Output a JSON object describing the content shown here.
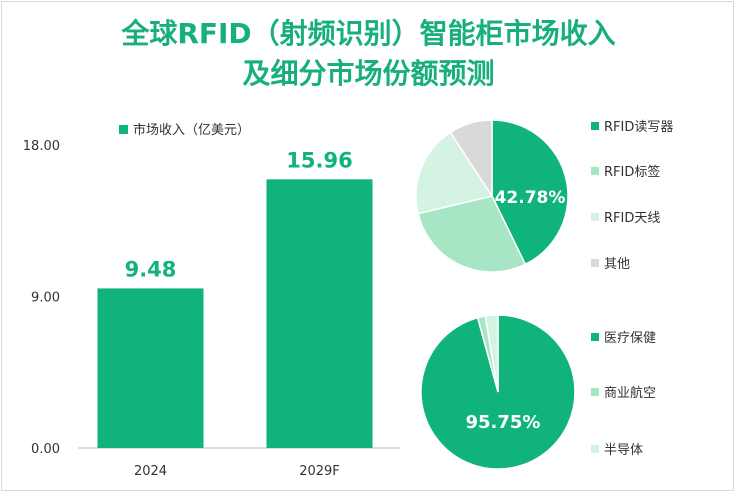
{
  "title_lines": [
    "全球RFID（射频识别）智能柜市场收入",
    "及细分市场份额预测"
  ],
  "colors": {
    "accent": "#10b37a",
    "light1": "#a6e6c4",
    "light2": "#d4f3e2",
    "gray": "#d9d9d9",
    "axis": "#595959"
  },
  "chart_data": [
    {
      "type": "bar",
      "title": "",
      "legend": "市场收入（亿美元）",
      "categories": [
        "2024",
        "2029F"
      ],
      "values": [
        9.48,
        15.96
      ],
      "data_labels": [
        "9.48",
        "15.96"
      ],
      "ylim": [
        0,
        18
      ],
      "yticks": [
        "0.00",
        "9.00",
        "18.00"
      ],
      "xlabel": "",
      "ylabel": ""
    },
    {
      "type": "pie",
      "title": "",
      "slices": [
        {
          "name": "RFID读写器",
          "value": 42.78
        },
        {
          "name": "RFID标签",
          "value": 28.5
        },
        {
          "name": "RFID天线",
          "value": 19.5
        },
        {
          "name": "其他",
          "value": 9.22
        }
      ],
      "label": "42.78%"
    },
    {
      "type": "pie",
      "title": "",
      "slices": [
        {
          "name": "医疗保健",
          "value": 95.75
        },
        {
          "name": "商业航空",
          "value": 1.6
        },
        {
          "name": "半导体",
          "value": 2.65
        }
      ],
      "label": "95.75%"
    }
  ]
}
